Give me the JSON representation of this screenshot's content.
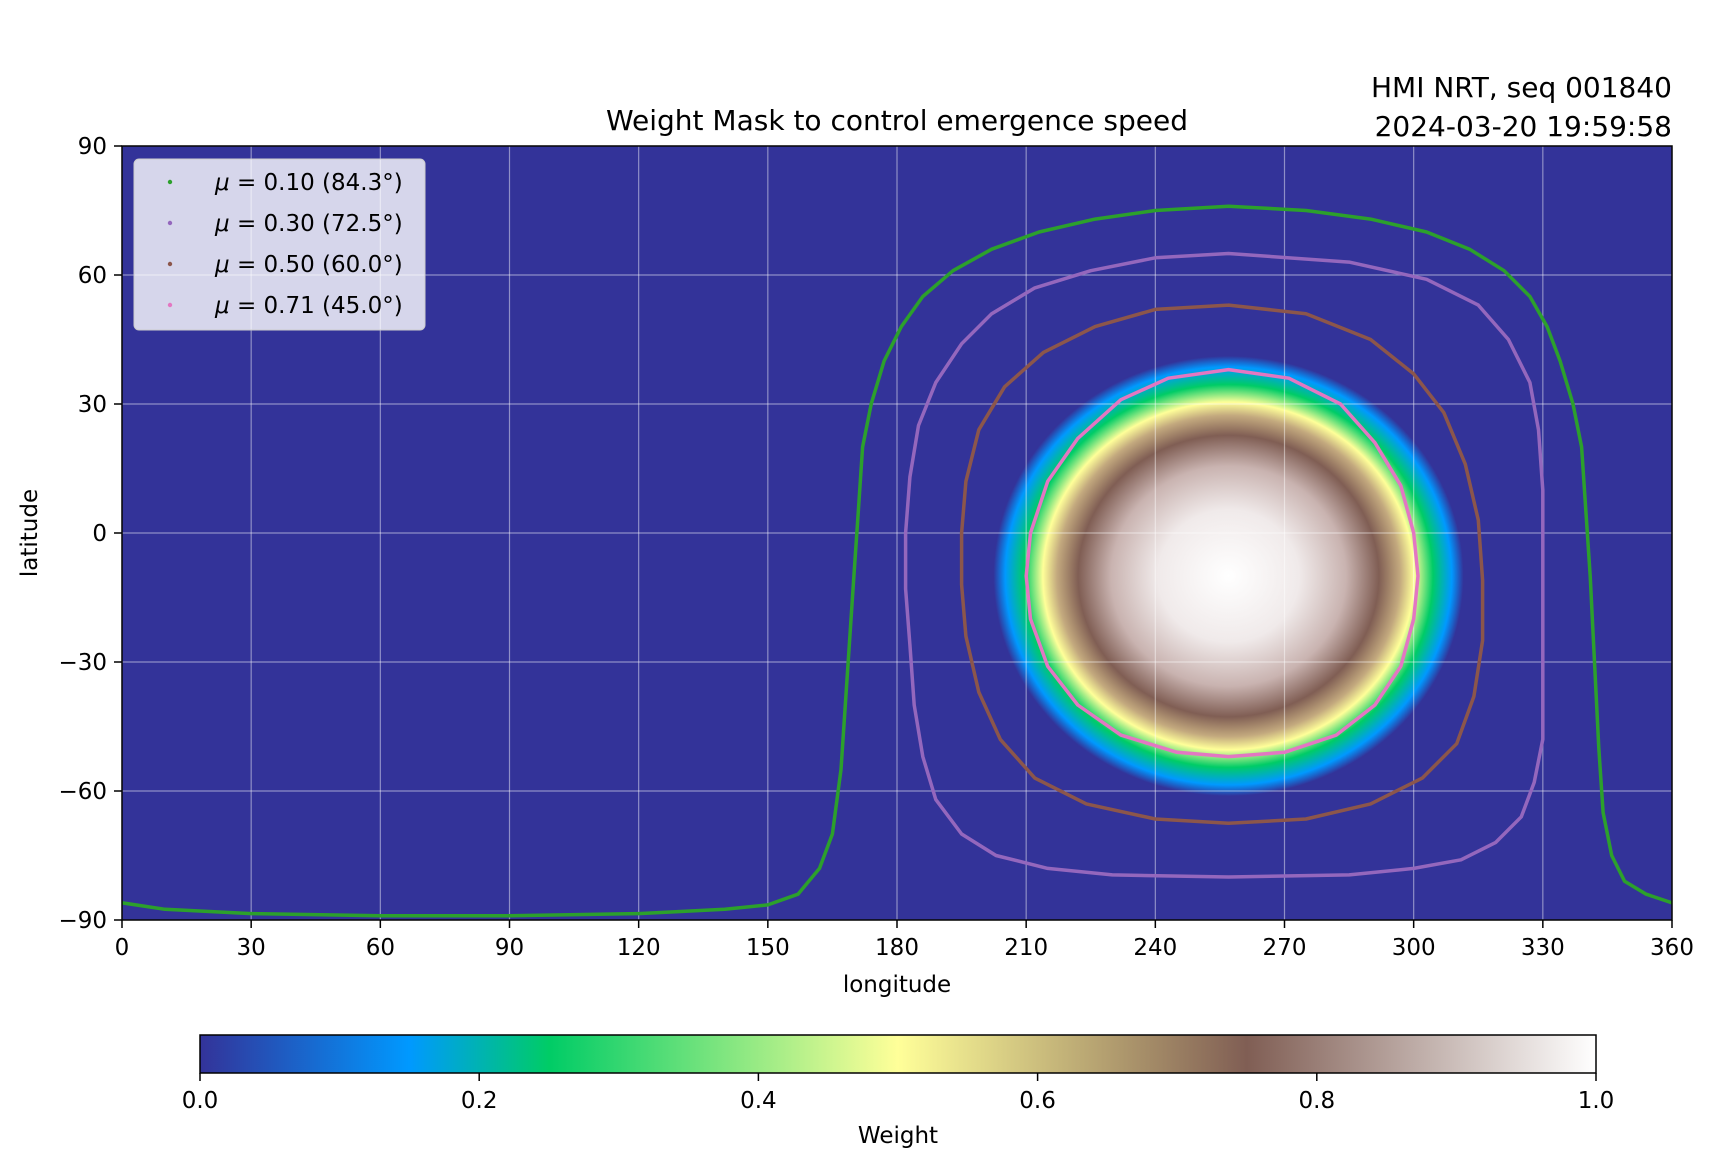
{
  "chart_data": {
    "type": "heatmap",
    "title": "Weight Mask to control emergence speed",
    "subtitle": [
      "HMI NRT, seq 001840",
      "2024-03-20 19:59:58"
    ],
    "xlabel": "longitude",
    "ylabel": "latitude",
    "xlim": [
      0,
      360
    ],
    "ylim": [
      -90,
      90
    ],
    "xticks": [
      0,
      30,
      60,
      90,
      120,
      150,
      180,
      210,
      240,
      270,
      300,
      330,
      360
    ],
    "yticks": [
      -90,
      -60,
      -30,
      0,
      30,
      60,
      90
    ],
    "xtick_labels": [
      "0",
      "30",
      "60",
      "90",
      "120",
      "150",
      "180",
      "210",
      "240",
      "270",
      "300",
      "330",
      "360"
    ],
    "ytick_labels": [
      "−90",
      "−60",
      "−30",
      "0",
      "30",
      "60",
      "90"
    ],
    "grid": true,
    "legend_position": "top-left",
    "heatmap_peak": {
      "lon": 257,
      "lat": -10
    },
    "colorbar": {
      "label": "Weight",
      "orientation": "horizontal",
      "range": [
        0.0,
        1.0
      ],
      "ticks": [
        0.0,
        0.2,
        0.4,
        0.6,
        0.8,
        1.0
      ],
      "tick_labels": [
        "0.0",
        "0.2",
        "0.4",
        "0.6",
        "0.8",
        "1.0"
      ],
      "colormap": "terrain",
      "stops": [
        {
          "v": 0.0,
          "color": "#333399"
        },
        {
          "v": 0.15,
          "color": "#0099ff"
        },
        {
          "v": 0.25,
          "color": "#00cc66"
        },
        {
          "v": 0.5,
          "color": "#ffff99"
        },
        {
          "v": 0.75,
          "color": "#805e54"
        },
        {
          "v": 1.0,
          "color": "#ffffff"
        }
      ]
    },
    "series": [
      {
        "name": "μ = 0.10 (84.3°)",
        "legend_mu": "μ",
        "legend_text": " = 0.10 (84.3°)",
        "color": "#2ca02c",
        "points": [
          [
            0,
            -86
          ],
          [
            10,
            -87.5
          ],
          [
            30,
            -88.5
          ],
          [
            60,
            -89
          ],
          [
            90,
            -89
          ],
          [
            120,
            -88.5
          ],
          [
            140,
            -87.5
          ],
          [
            150,
            -86.5
          ],
          [
            157,
            -84
          ],
          [
            162,
            -78
          ],
          [
            165,
            -70
          ],
          [
            167,
            -55
          ],
          [
            168,
            -40
          ],
          [
            169,
            -25
          ],
          [
            170,
            -10
          ],
          [
            171,
            5
          ],
          [
            172,
            20
          ],
          [
            174,
            30
          ],
          [
            177,
            40
          ],
          [
            181,
            48
          ],
          [
            186,
            55
          ],
          [
            193,
            61
          ],
          [
            202,
            66
          ],
          [
            213,
            70
          ],
          [
            226,
            73
          ],
          [
            240,
            75
          ],
          [
            257,
            76
          ],
          [
            275,
            75
          ],
          [
            290,
            73
          ],
          [
            303,
            70
          ],
          [
            313,
            66
          ],
          [
            321,
            61
          ],
          [
            327,
            55
          ],
          [
            331,
            48
          ],
          [
            334,
            40
          ],
          [
            337,
            30
          ],
          [
            339,
            20
          ],
          [
            340,
            5
          ],
          [
            341,
            -10
          ],
          [
            342,
            -30
          ],
          [
            343,
            -50
          ],
          [
            344,
            -65
          ],
          [
            346,
            -75
          ],
          [
            349,
            -81
          ],
          [
            354,
            -84
          ],
          [
            360,
            -86
          ]
        ]
      },
      {
        "name": "μ = 0.30 (72.5°)",
        "legend_mu": "μ",
        "legend_text": " = 0.30 (72.5°)",
        "color": "#9467bd",
        "points": [
          [
            257,
            65
          ],
          [
            240,
            64
          ],
          [
            225,
            61
          ],
          [
            212,
            57
          ],
          [
            202,
            51
          ],
          [
            195,
            44
          ],
          [
            189,
            35
          ],
          [
            185,
            25
          ],
          [
            183,
            13
          ],
          [
            182,
            0
          ],
          [
            182,
            -13
          ],
          [
            183,
            -26
          ],
          [
            184,
            -40
          ],
          [
            186,
            -52
          ],
          [
            189,
            -62
          ],
          [
            195,
            -70
          ],
          [
            203,
            -75
          ],
          [
            215,
            -78
          ],
          [
            230,
            -79.5
          ],
          [
            257,
            -80
          ],
          [
            285,
            -79.5
          ],
          [
            300,
            -78
          ],
          [
            311,
            -76
          ],
          [
            319,
            -72
          ],
          [
            325,
            -66
          ],
          [
            328,
            -58
          ],
          [
            330,
            -48
          ],
          [
            330,
            -35
          ],
          [
            330,
            -20
          ],
          [
            330,
            -5
          ],
          [
            330,
            10
          ],
          [
            329,
            24
          ],
          [
            327,
            35
          ],
          [
            322,
            45
          ],
          [
            315,
            53
          ],
          [
            303,
            59
          ],
          [
            285,
            63
          ],
          [
            257,
            65
          ]
        ]
      },
      {
        "name": "μ = 0.50 (60.0°)",
        "legend_mu": "μ",
        "legend_text": " = 0.50 (60.0°)",
        "color": "#8c564b",
        "points": [
          [
            257,
            53
          ],
          [
            240,
            52
          ],
          [
            226,
            48
          ],
          [
            214,
            42
          ],
          [
            205,
            34
          ],
          [
            199,
            24
          ],
          [
            196,
            12
          ],
          [
            195,
            0
          ],
          [
            195,
            -12
          ],
          [
            196,
            -24
          ],
          [
            199,
            -37
          ],
          [
            204,
            -48
          ],
          [
            212,
            -57
          ],
          [
            224,
            -63
          ],
          [
            240,
            -66.5
          ],
          [
            257,
            -67.5
          ],
          [
            275,
            -66.5
          ],
          [
            290,
            -63
          ],
          [
            302,
            -57
          ],
          [
            310,
            -49
          ],
          [
            314,
            -38
          ],
          [
            316,
            -25
          ],
          [
            316,
            -11
          ],
          [
            315,
            3
          ],
          [
            312,
            16
          ],
          [
            307,
            28
          ],
          [
            300,
            37
          ],
          [
            290,
            45
          ],
          [
            275,
            51
          ],
          [
            257,
            53
          ]
        ]
      },
      {
        "name": "μ = 0.71 (45.0°)",
        "legend_mu": "μ",
        "legend_text": " = 0.71 (45.0°)",
        "color": "#e377c2",
        "points": [
          [
            257,
            38
          ],
          [
            243,
            36
          ],
          [
            232,
            31
          ],
          [
            222,
            22
          ],
          [
            215,
            12
          ],
          [
            211,
            0
          ],
          [
            210,
            -10
          ],
          [
            211,
            -20
          ],
          [
            215,
            -31
          ],
          [
            222,
            -40
          ],
          [
            232,
            -47
          ],
          [
            245,
            -51
          ],
          [
            257,
            -52
          ],
          [
            270,
            -51
          ],
          [
            282,
            -47
          ],
          [
            291,
            -40
          ],
          [
            297,
            -31
          ],
          [
            300,
            -20
          ],
          [
            301,
            -10
          ],
          [
            300,
            0
          ],
          [
            297,
            11
          ],
          [
            291,
            21
          ],
          [
            283,
            30
          ],
          [
            271,
            36
          ],
          [
            257,
            38
          ]
        ]
      }
    ]
  }
}
